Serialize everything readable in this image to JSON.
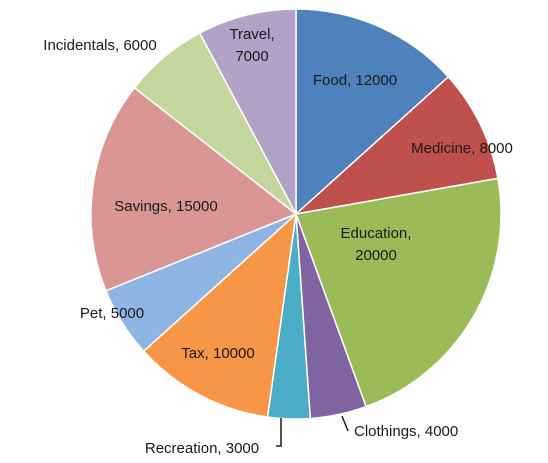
{
  "chart_data": {
    "type": "pie",
    "title": "",
    "total": 90000,
    "slices": [
      {
        "name": "Food",
        "value": 12000,
        "label": "Food, 12000",
        "color": "#4f81bd"
      },
      {
        "name": "Medicine",
        "value": 8000,
        "label": "Medicine, 8000",
        "color": "#c0504d"
      },
      {
        "name": "Education",
        "value": 20000,
        "label": "Education, 20000",
        "label_lines": [
          "Education,",
          "20000"
        ],
        "color": "#9bbb59"
      },
      {
        "name": "Clothings",
        "value": 4000,
        "label": "Clothings, 4000",
        "color": "#8064a2"
      },
      {
        "name": "Recreation",
        "value": 3000,
        "label": "Recreation, 3000",
        "color": "#4bacc6"
      },
      {
        "name": "Tax",
        "value": 10000,
        "label": "Tax, 10000",
        "color": "#f79646"
      },
      {
        "name": "Pet",
        "value": 5000,
        "label": "Pet, 5000",
        "color": "#8eb4e3"
      },
      {
        "name": "Savings",
        "value": 15000,
        "label": "Savings, 15000",
        "color": "#d99694"
      },
      {
        "name": "Incidentals",
        "value": 6000,
        "label": "Incidentals, 6000",
        "color": "#c3d69b"
      },
      {
        "name": "Travel",
        "value": 7000,
        "label": "Travel, 7000",
        "label_lines": [
          "Travel,",
          "7000"
        ],
        "color": "#b3a2c7"
      }
    ],
    "start_angle": "12 o'clock",
    "direction": "clockwise",
    "legend": "none"
  }
}
